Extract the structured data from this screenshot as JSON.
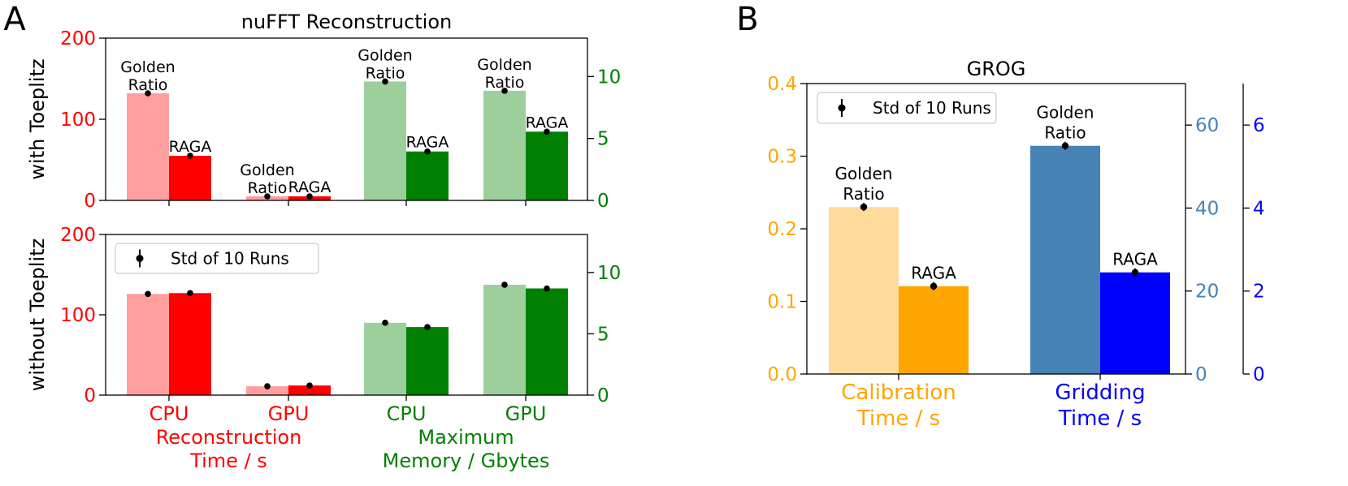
{
  "colors": {
    "red": "#ff0000",
    "light_red": "#ff9e9e",
    "green": "#008000",
    "light_green": "#9ccf9c",
    "orange": "#ffa500",
    "light_orange": "#ffdb9b",
    "steelblue": "#4682b4",
    "blue": "#0000ff",
    "black": "#000000"
  },
  "panel_labels": {
    "a": "A",
    "b": "B"
  },
  "chart_data": [
    {
      "id": "A_top",
      "type": "bar",
      "title": "nuFFT Reconstruction",
      "ylabel": "with Toeplitz",
      "left_axis": {
        "ylim": [
          0,
          200
        ],
        "ticks": [
          0,
          100,
          200
        ],
        "tick_labels": [
          "0",
          "100",
          "200"
        ],
        "color": "red"
      },
      "right_axis": {
        "ylim": [
          0,
          13.1
        ],
        "ticks": [
          0,
          5,
          10
        ],
        "tick_labels": [
          "0",
          "5",
          "10"
        ],
        "color": "green"
      },
      "groups": [
        {
          "bars": [
            {
              "value": 132,
              "axis": "left",
              "color": "light_red",
              "label": "Golden\nRatio"
            },
            {
              "value": 55,
              "axis": "left",
              "color": "red",
              "label": "RAGA"
            }
          ]
        },
        {
          "bars": [
            {
              "value": 5,
              "axis": "left",
              "color": "light_red",
              "label": "Golden\nRatio"
            },
            {
              "value": 5,
              "axis": "left",
              "color": "red",
              "label": "RAGA"
            }
          ]
        },
        {
          "bars": [
            {
              "value": 9.6,
              "axis": "right",
              "color": "light_green",
              "label": "Golden\nRatio"
            },
            {
              "value": 3.95,
              "axis": "right",
              "color": "green",
              "label": "RAGA"
            }
          ]
        },
        {
          "bars": [
            {
              "value": 8.85,
              "axis": "right",
              "color": "light_green",
              "label": "Golden\nRatio"
            },
            {
              "value": 5.55,
              "axis": "right",
              "color": "green",
              "label": "RAGA"
            }
          ]
        }
      ]
    },
    {
      "id": "A_bottom",
      "type": "bar",
      "ylabel": "without Toeplitz",
      "legend": {
        "label": "Std of 10 Runs",
        "position": "upper-left"
      },
      "left_axis": {
        "ylim": [
          0,
          200
        ],
        "ticks": [
          0,
          100,
          200
        ],
        "tick_labels": [
          "0",
          "100",
          "200"
        ],
        "color": "red"
      },
      "right_axis": {
        "ylim": [
          0,
          13.1
        ],
        "ticks": [
          0,
          5,
          10
        ],
        "tick_labels": [
          "0",
          "5",
          "10"
        ],
        "color": "green"
      },
      "categories": [
        "CPU",
        "GPU",
        "CPU",
        "GPU"
      ],
      "category_colors": [
        "red",
        "red",
        "green",
        "green"
      ],
      "group_labels": [
        {
          "text": "Reconstruction\nTime / s",
          "color": "red"
        },
        {
          "text": "Maximum\nMemory / Gbytes",
          "color": "green"
        }
      ],
      "groups": [
        {
          "bars": [
            {
              "value": 126,
              "axis": "left",
              "color": "light_red"
            },
            {
              "value": 127,
              "axis": "left",
              "color": "red"
            }
          ]
        },
        {
          "bars": [
            {
              "value": 11,
              "axis": "left",
              "color": "light_red"
            },
            {
              "value": 12,
              "axis": "left",
              "color": "red"
            }
          ]
        },
        {
          "bars": [
            {
              "value": 5.9,
              "axis": "right",
              "color": "light_green"
            },
            {
              "value": 5.55,
              "axis": "right",
              "color": "green"
            }
          ]
        },
        {
          "bars": [
            {
              "value": 9.0,
              "axis": "right",
              "color": "light_green"
            },
            {
              "value": 8.7,
              "axis": "right",
              "color": "green"
            }
          ]
        }
      ]
    },
    {
      "id": "B",
      "type": "bar",
      "title": "GROG",
      "legend": {
        "label": "Std of 10 Runs",
        "position": "upper-left"
      },
      "left_axis": {
        "ylim": [
          0,
          0.4
        ],
        "ticks": [
          0,
          0.1,
          0.2,
          0.3,
          0.4
        ],
        "tick_labels": [
          "0.0",
          "0.1",
          "0.2",
          "0.3",
          "0.4"
        ],
        "color": "orange"
      },
      "right_axis": {
        "ylim": [
          0,
          70
        ],
        "ticks": [
          0,
          20,
          40,
          60
        ],
        "tick_labels": [
          "0",
          "20",
          "40",
          "60"
        ],
        "color": "steelblue"
      },
      "outer_axis": {
        "ylim": [
          0,
          7
        ],
        "ticks": [
          0,
          2,
          4,
          6
        ],
        "tick_labels": [
          "0",
          "2",
          "4",
          "6"
        ],
        "color": "blue"
      },
      "group_labels": [
        {
          "text": "Calibration\nTime / s",
          "color": "orange"
        },
        {
          "text": "Gridding\nTime / s",
          "color": "blue"
        }
      ],
      "groups": [
        {
          "bars": [
            {
              "value": 0.23,
              "axis": "left",
              "color": "light_orange",
              "label": "Golden\nRatio"
            },
            {
              "value": 0.121,
              "axis": "left",
              "color": "orange",
              "label": "RAGA"
            }
          ]
        },
        {
          "bars": [
            {
              "value": 55,
              "axis": "right",
              "color": "steelblue",
              "label": "Golden\nRatio"
            },
            {
              "value": 24.5,
              "axis": "right",
              "color": "blue",
              "label": "RAGA"
            }
          ]
        }
      ]
    }
  ]
}
